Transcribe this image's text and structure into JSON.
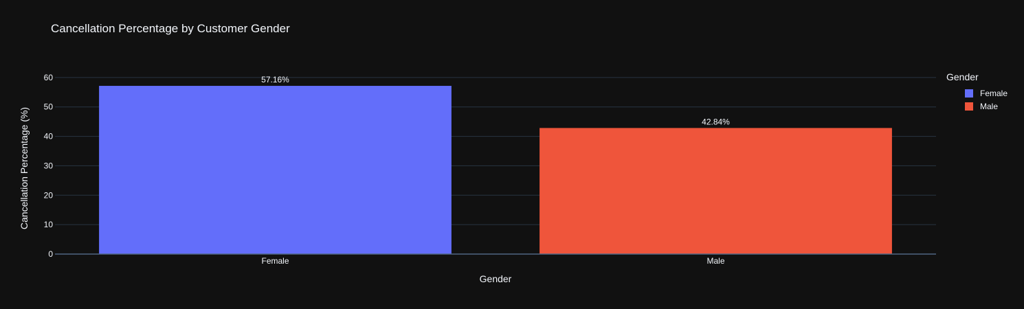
{
  "chart_data": {
    "type": "bar",
    "title": "Cancellation Percentage by Customer Gender",
    "xlabel": "Gender",
    "ylabel": "Cancellation Percentage (%)",
    "categories": [
      "Female",
      "Male"
    ],
    "values": [
      57.16,
      42.84
    ],
    "value_labels": [
      "57.16%",
      "42.84%"
    ],
    "colors": [
      "#636efa",
      "#ef553b"
    ],
    "ylim": [
      0,
      63
    ],
    "yticks": [
      0,
      10,
      20,
      30,
      40,
      50,
      60
    ],
    "grid": true,
    "legend": {
      "title": "Gender",
      "position": "right",
      "items": [
        {
          "label": "Female",
          "color": "#636efa"
        },
        {
          "label": "Male",
          "color": "#ef553b"
        }
      ]
    }
  }
}
